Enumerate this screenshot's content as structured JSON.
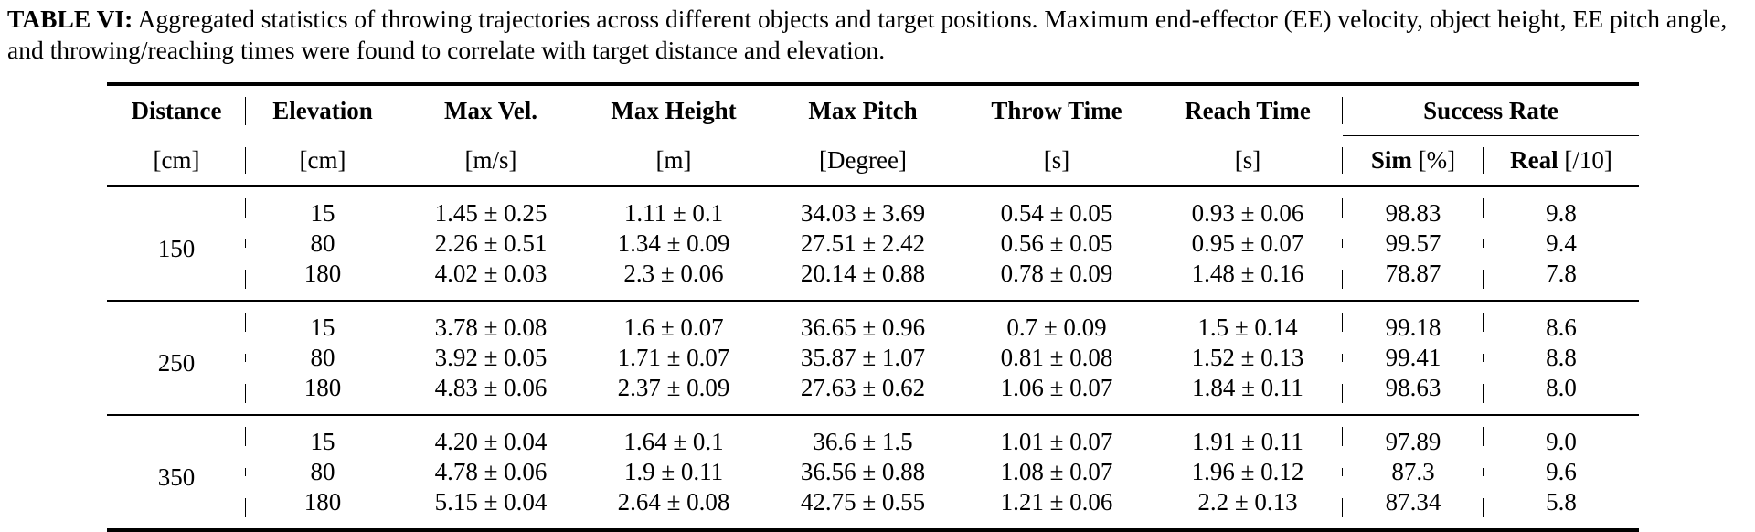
{
  "caption": {
    "label": "TABLE VI:",
    "text": " Aggregated statistics of throwing trajectories across different objects and target positions. Maximum end-effector (EE) velocity, object height, EE pitch angle, and throwing/reaching times were found to correlate with target distance and elevation."
  },
  "headers": {
    "distance": "Distance",
    "elevation": "Elevation",
    "max_vel": "Max Vel.",
    "max_height": "Max Height",
    "max_pitch": "Max Pitch",
    "throw_time": "Throw Time",
    "reach_time": "Reach Time",
    "success_rate": "Success Rate",
    "sim_bold": "Sim",
    "sim_unit": " [%]",
    "real_bold": "Real",
    "real_unit": " [/10]"
  },
  "units": {
    "distance": "[cm]",
    "elevation": "[cm]",
    "max_vel": "[m/s]",
    "max_height": "[m]",
    "max_pitch": "[Degree]",
    "throw_time": "[s]",
    "reach_time": "[s]"
  },
  "groups": [
    {
      "distance": "150",
      "rows": [
        {
          "elev": "15",
          "vel": "1.45 ± 0.25",
          "height": "1.11 ± 0.1",
          "pitch": "34.03 ± 3.69",
          "throw": "0.54 ± 0.05",
          "reach": "0.93 ± 0.06",
          "sim": "98.83",
          "real": "9.8"
        },
        {
          "elev": "80",
          "vel": "2.26 ± 0.51",
          "height": "1.34 ± 0.09",
          "pitch": "27.51 ± 2.42",
          "throw": "0.56 ± 0.05",
          "reach": "0.95 ± 0.07",
          "sim": "99.57",
          "real": "9.4"
        },
        {
          "elev": "180",
          "vel": "4.02 ± 0.03",
          "height": "2.3 ± 0.06",
          "pitch": "20.14 ± 0.88",
          "throw": "0.78 ± 0.09",
          "reach": "1.48 ± 0.16",
          "sim": "78.87",
          "real": "7.8"
        }
      ]
    },
    {
      "distance": "250",
      "rows": [
        {
          "elev": "15",
          "vel": "3.78 ± 0.08",
          "height": "1.6 ± 0.07",
          "pitch": "36.65 ± 0.96",
          "throw": "0.7 ± 0.09",
          "reach": "1.5 ± 0.14",
          "sim": "99.18",
          "real": "8.6"
        },
        {
          "elev": "80",
          "vel": "3.92 ± 0.05",
          "height": "1.71 ± 0.07",
          "pitch": "35.87 ± 1.07",
          "throw": "0.81 ± 0.08",
          "reach": "1.52 ± 0.13",
          "sim": "99.41",
          "real": "8.8"
        },
        {
          "elev": "180",
          "vel": "4.83 ± 0.06",
          "height": "2.37 ± 0.09",
          "pitch": "27.63 ± 0.62",
          "throw": "1.06 ± 0.07",
          "reach": "1.84 ± 0.11",
          "sim": "98.63",
          "real": "8.0"
        }
      ]
    },
    {
      "distance": "350",
      "rows": [
        {
          "elev": "15",
          "vel": "4.20 ± 0.04",
          "height": "1.64 ± 0.1",
          "pitch": "36.6 ± 1.5",
          "throw": "1.01 ± 0.07",
          "reach": "1.91 ± 0.11",
          "sim": "97.89",
          "real": "9.0"
        },
        {
          "elev": "80",
          "vel": "4.78 ± 0.06",
          "height": "1.9 ± 0.11",
          "pitch": "36.56 ± 0.88",
          "throw": "1.08 ± 0.07",
          "reach": "1.96 ± 0.12",
          "sim": "87.3",
          "real": "9.6"
        },
        {
          "elev": "180",
          "vel": "5.15 ± 0.04",
          "height": "2.64 ± 0.08",
          "pitch": "42.75 ± 0.55",
          "throw": "1.21 ± 0.06",
          "reach": "2.2 ± 0.13",
          "sim": "87.34",
          "real": "5.8"
        }
      ]
    }
  ]
}
